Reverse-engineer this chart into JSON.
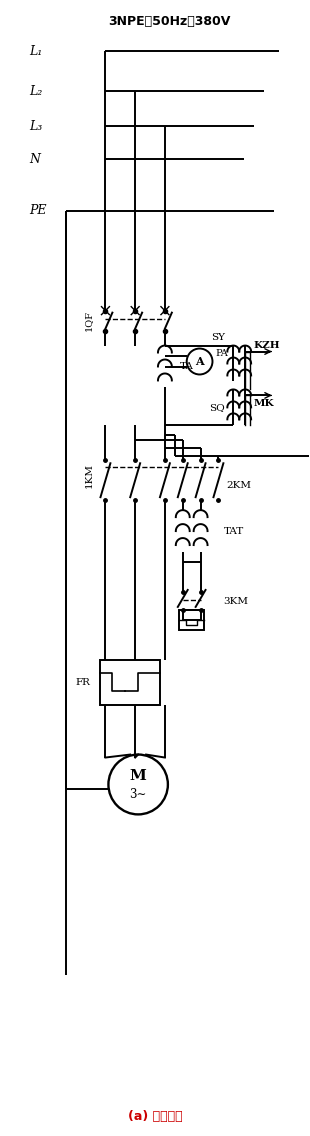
{
  "title": "(a) 一次电路",
  "title_color": "#cc0000",
  "bg_color": "#ffffff",
  "supply_label": "3NPE～50Hz、380V",
  "bus_labels": [
    "L₁",
    "L₂",
    "L₃",
    "N",
    "PE"
  ],
  "fig_width": 3.1,
  "fig_height": 11.36,
  "dpi": 100
}
